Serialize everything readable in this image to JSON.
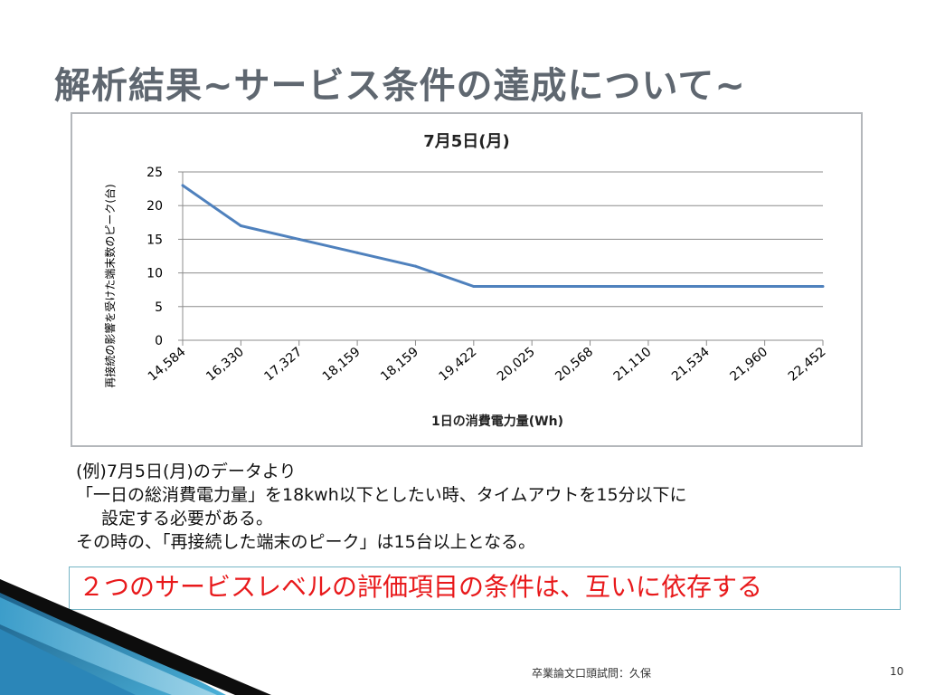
{
  "slide": {
    "title": "解析結果~サービス条件の達成について~",
    "notes": [
      "(例)7月5日(月)のデータより",
      "「一日の総消費電力量」を18kwh以下としたい時、タイムアウトを15分以下に",
      "設定する必要がある。",
      "その時の、「再接続した端末のピーク」は15台以上となる。"
    ],
    "conclusion": "２つのサービスレベルの評価項目の条件は、互いに依存する",
    "footer": "卒業論文口頭試問：久保",
    "page_number": "10"
  },
  "colors": {
    "line": "#4f81bd",
    "title": "#5f6770",
    "conclusion_text": "#e8191b",
    "conclusion_border": "#76b5c5",
    "grid": "#8c8c8c"
  },
  "chart_data": {
    "type": "line",
    "title": "7月5日(月)",
    "xlabel": "1日の消費電力量(Wh)",
    "ylabel": "再接続の影響を受けた端末数のピーク(台)",
    "categories": [
      "14,584",
      "16,330",
      "17,327",
      "18,159",
      "18,159",
      "19,422",
      "20,025",
      "20,568",
      "21,110",
      "21,534",
      "21,960",
      "22,452"
    ],
    "values": [
      23,
      17,
      15,
      13,
      11,
      8,
      8,
      8,
      8,
      8,
      8,
      8
    ],
    "ylim": [
      0,
      25
    ],
    "yticks": [
      0,
      5,
      10,
      15,
      20,
      25
    ],
    "grid": true
  }
}
